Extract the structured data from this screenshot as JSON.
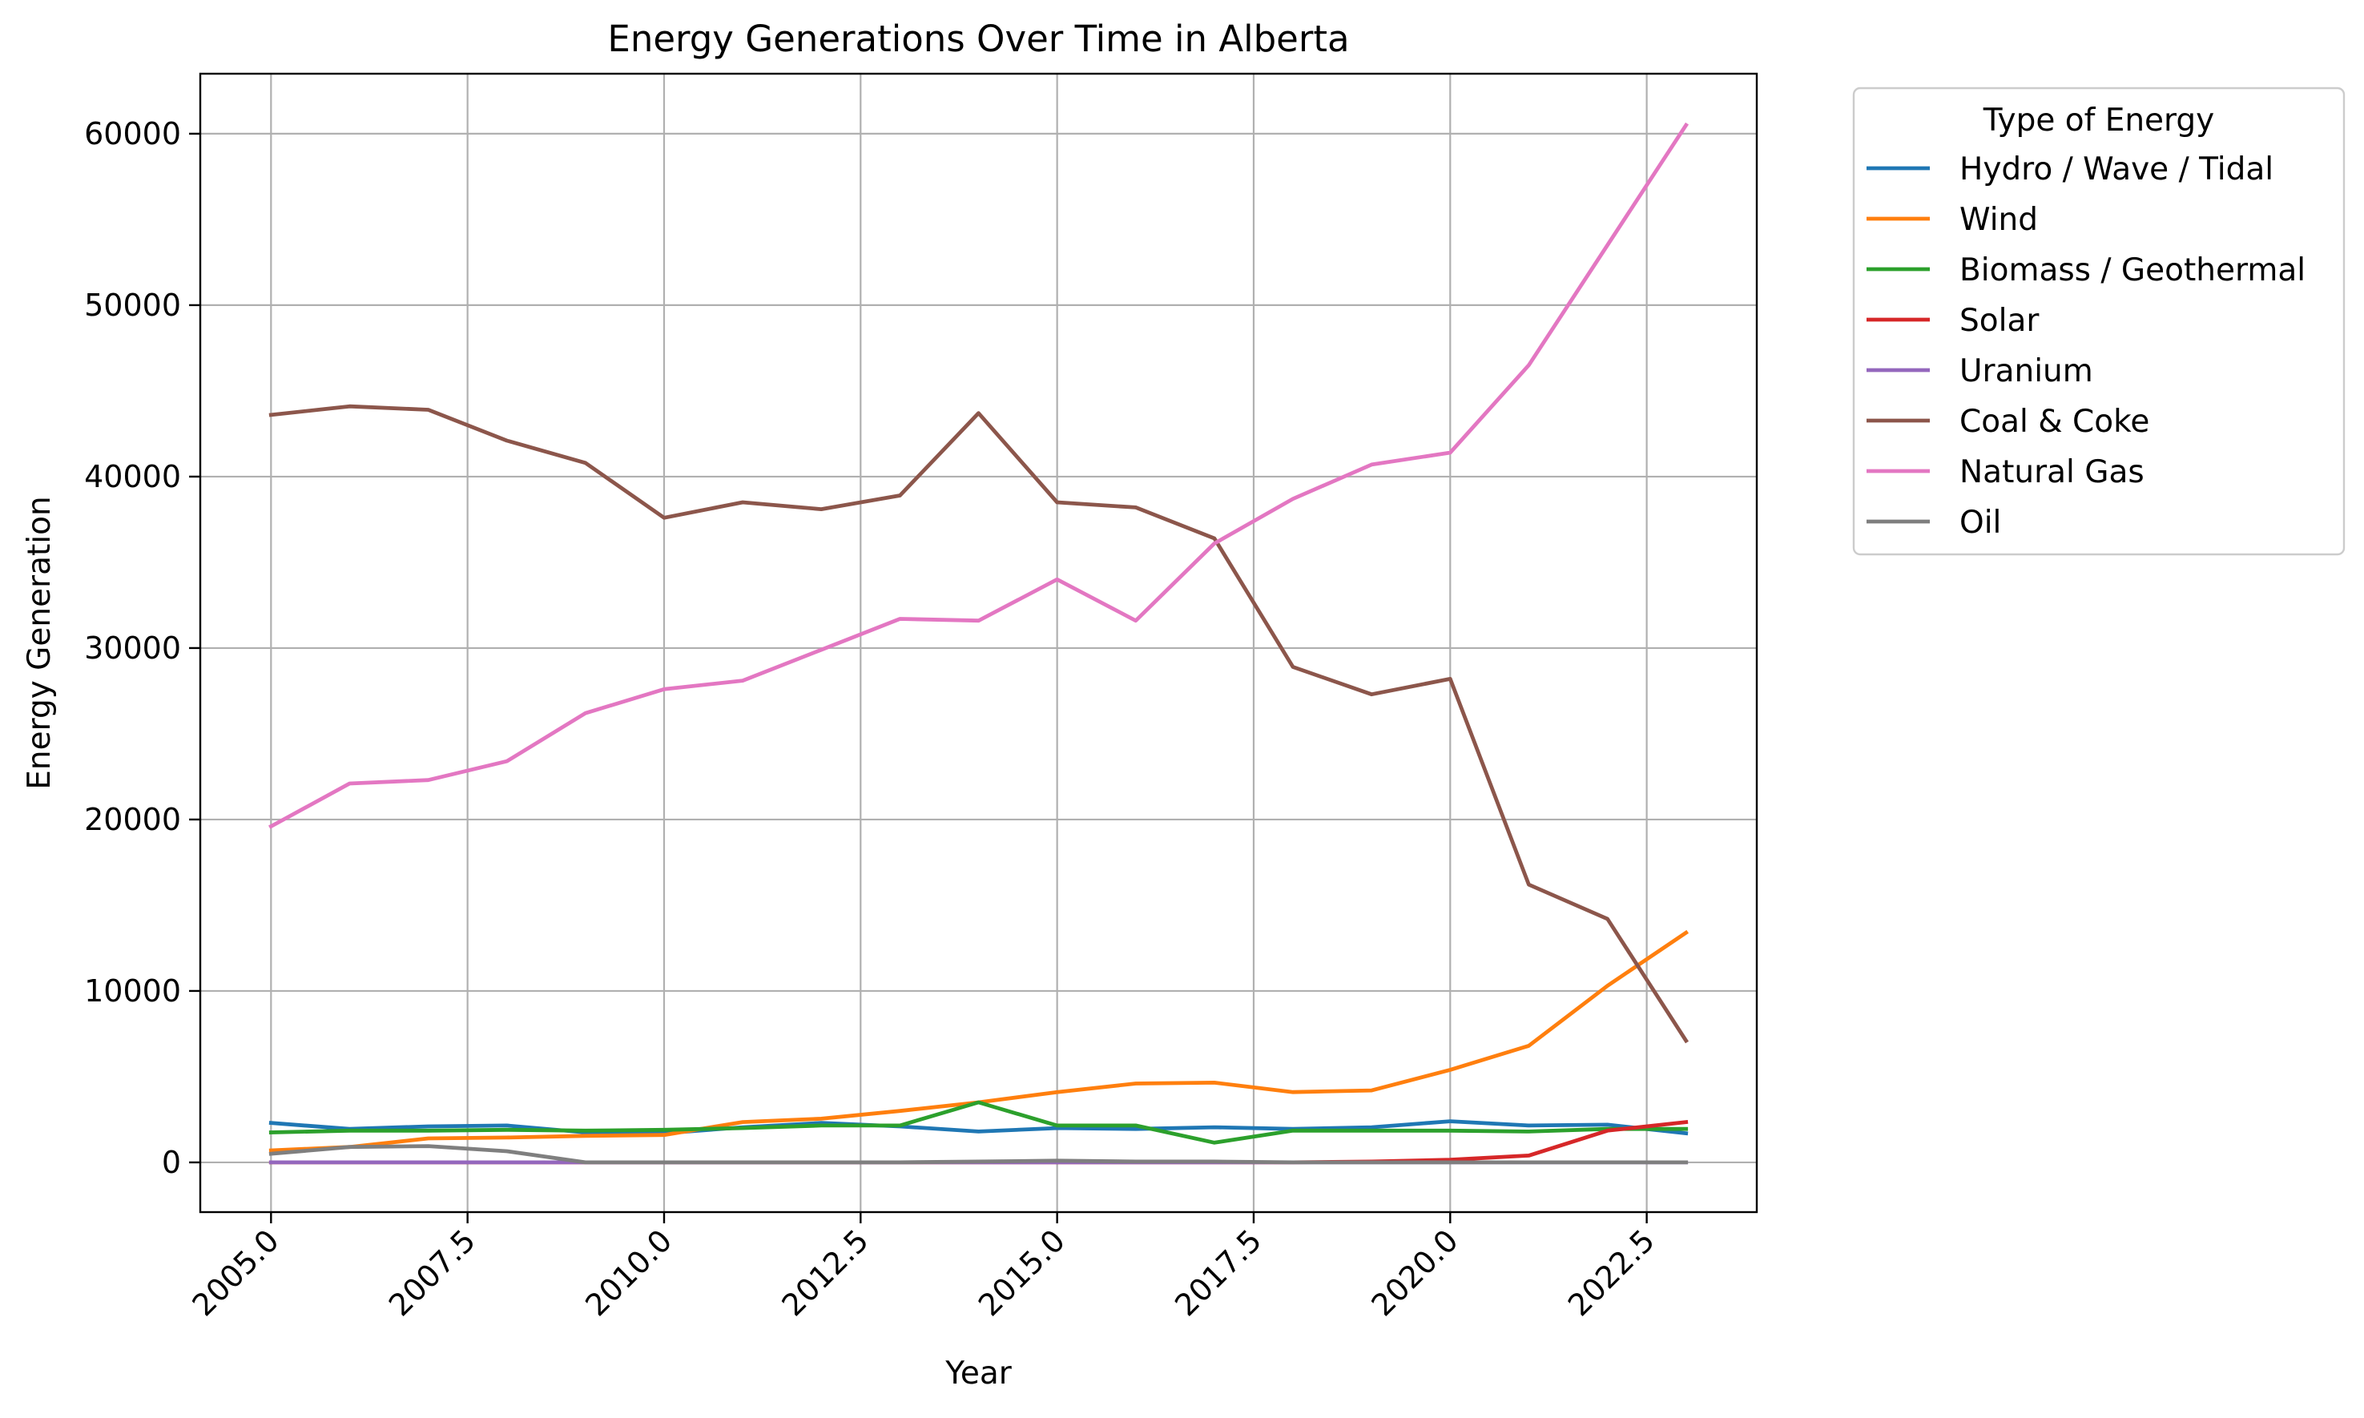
{
  "chart_data": {
    "type": "line",
    "title": "Energy Generations Over Time in Alberta",
    "xlabel": "Year",
    "ylabel": "Energy Generation",
    "xlim": [
      2004.1,
      2023.9
    ],
    "ylim": [
      -2900,
      63500
    ],
    "x_ticks": [
      2005.0,
      2007.5,
      2010.0,
      2012.5,
      2015.0,
      2017.5,
      2020.0,
      2022.5
    ],
    "x_tick_labels": [
      "2005.0",
      "2007.5",
      "2010.0",
      "2012.5",
      "2015.0",
      "2017.5",
      "2020.0",
      "2022.5"
    ],
    "y_ticks": [
      0,
      10000,
      20000,
      30000,
      40000,
      50000,
      60000
    ],
    "y_tick_labels": [
      "0",
      "10000",
      "20000",
      "30000",
      "40000",
      "50000",
      "60000"
    ],
    "grid": true,
    "legend": {
      "title": "Type of Energy",
      "placement": "outside-upper-right"
    },
    "x": [
      2005,
      2006,
      2007,
      2008,
      2009,
      2010,
      2011,
      2012,
      2013,
      2014,
      2015,
      2016,
      2017,
      2018,
      2019,
      2020,
      2021,
      2022,
      2023
    ],
    "series": [
      {
        "name": "Hydro / Wave / Tidal",
        "color": "#1f77b4",
        "values": [
          2300,
          1950,
          2100,
          2150,
          1750,
          1700,
          2050,
          2300,
          2100,
          1800,
          2000,
          1950,
          2050,
          1950,
          2050,
          2400,
          2150,
          2200,
          1700
        ]
      },
      {
        "name": "Wind",
        "color": "#ff7f0e",
        "values": [
          700,
          900,
          1400,
          1450,
          1550,
          1600,
          2350,
          2550,
          3000,
          3500,
          4100,
          4600,
          4650,
          4100,
          4200,
          5400,
          6800,
          10300,
          13400
        ]
      },
      {
        "name": "Biomass / Geothermal",
        "color": "#2ca02c",
        "values": [
          1750,
          1850,
          1850,
          1900,
          1850,
          1900,
          2000,
          2150,
          2150,
          3500,
          2150,
          2150,
          1150,
          1850,
          1850,
          1850,
          1800,
          1950,
          1950
        ]
      },
      {
        "name": "Solar",
        "color": "#d62728",
        "values": [
          0,
          0,
          0,
          0,
          0,
          0,
          0,
          0,
          0,
          0,
          0,
          0,
          0,
          0,
          50,
          150,
          400,
          1850,
          2350
        ]
      },
      {
        "name": "Uranium",
        "color": "#9467bd",
        "values": [
          0,
          0,
          0,
          0,
          0,
          0,
          0,
          0,
          0,
          0,
          0,
          0,
          0,
          0,
          0,
          0,
          0,
          0,
          0
        ]
      },
      {
        "name": "Coal & Coke",
        "color": "#8c564b",
        "values": [
          43600,
          44100,
          43900,
          42100,
          40800,
          37600,
          38500,
          38100,
          38900,
          43700,
          38500,
          38200,
          36400,
          28900,
          27300,
          28200,
          16200,
          14200,
          7100
        ]
      },
      {
        "name": "Natural Gas",
        "color": "#e377c2",
        "values": [
          19600,
          22100,
          22300,
          23400,
          26200,
          27600,
          28100,
          29900,
          31700,
          31600,
          34000,
          31600,
          36100,
          38700,
          40700,
          41400,
          46500,
          53500,
          60500
        ]
      },
      {
        "name": "Oil",
        "color": "#7f7f7f",
        "values": [
          500,
          900,
          950,
          650,
          0,
          0,
          0,
          0,
          0,
          50,
          100,
          50,
          50,
          0,
          0,
          0,
          0,
          0,
          0
        ]
      }
    ]
  }
}
